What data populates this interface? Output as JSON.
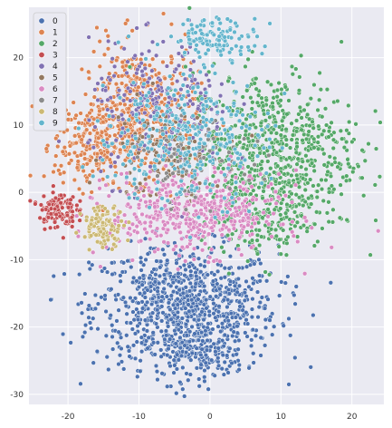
{
  "chart_data": {
    "type": "scatter",
    "title": "",
    "xlabel": "",
    "ylabel": "",
    "xlim": [
      -25.5,
      24.5
    ],
    "ylim": [
      -31.5,
      27.5
    ],
    "xticks": [
      -20,
      -10,
      0,
      10,
      20
    ],
    "yticks": [
      -30,
      -20,
      -10,
      0,
      10,
      20
    ],
    "grid": true,
    "legend_position": "top-left",
    "background_color": "#eaeaf2",
    "grid_color": "#ffffff",
    "series": [
      {
        "name": "0",
        "color": "#4c72b0",
        "clusters": [
          {
            "cx": -3.5,
            "cy": -17,
            "sx": 6.5,
            "sy": 4.5,
            "n": 900
          },
          {
            "cx": -2,
            "cy": -24,
            "sx": 3.5,
            "sy": 2,
            "n": 150
          }
        ]
      },
      {
        "name": "1",
        "color": "#dd8452",
        "clusters": [
          {
            "cx": -10,
            "cy": 12,
            "sx": 4,
            "sy": 5,
            "n": 420
          },
          {
            "cx": -17,
            "cy": 7,
            "sx": 2.5,
            "sy": 3,
            "n": 200
          }
        ]
      },
      {
        "name": "2",
        "color": "#55a868",
        "clusters": [
          {
            "cx": 9,
            "cy": 6,
            "sx": 6,
            "sy": 6,
            "n": 700
          },
          {
            "cx": 8,
            "cy": -3,
            "sx": 4,
            "sy": 3,
            "n": 160
          }
        ]
      },
      {
        "name": "3",
        "color": "#c44e52",
        "clusters": [
          {
            "cx": -21.5,
            "cy": -2.5,
            "sx": 1.3,
            "sy": 1.4,
            "n": 120
          }
        ]
      },
      {
        "name": "4",
        "color": "#8172b3",
        "clusters": [
          {
            "cx": -7,
            "cy": 12,
            "sx": 5,
            "sy": 5,
            "n": 260
          }
        ]
      },
      {
        "name": "5",
        "color": "#937860",
        "clusters": [
          {
            "cx": -6,
            "cy": 6,
            "sx": 4,
            "sy": 4,
            "n": 120
          }
        ]
      },
      {
        "name": "6",
        "color": "#da8bc3",
        "clusters": [
          {
            "cx": -2,
            "cy": -3,
            "sx": 6,
            "sy": 3,
            "n": 500
          }
        ]
      },
      {
        "name": "7",
        "color": "#8c8c8c",
        "clusters": [
          {
            "cx": -2,
            "cy": 4,
            "sx": 4,
            "sy": 3,
            "n": 80
          }
        ]
      },
      {
        "name": "8",
        "color": "#ccb974",
        "clusters": [
          {
            "cx": -15,
            "cy": -5,
            "sx": 1.5,
            "sy": 1.5,
            "n": 110
          }
        ]
      },
      {
        "name": "9",
        "color": "#64b5cd",
        "clusters": [
          {
            "cx": 1,
            "cy": 23,
            "sx": 3,
            "sy": 1.5,
            "n": 120
          },
          {
            "cx": -4,
            "cy": 8,
            "sx": 6,
            "sy": 5,
            "n": 320
          }
        ]
      }
    ]
  }
}
